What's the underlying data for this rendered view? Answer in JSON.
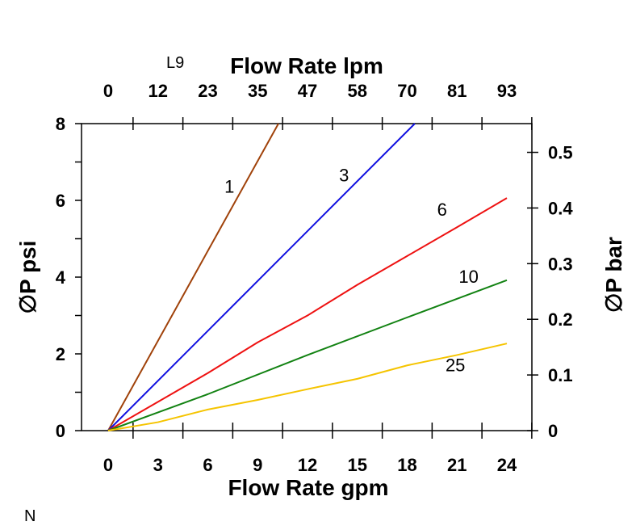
{
  "chart_data": {
    "type": "line",
    "title": "",
    "xlabel": "Flow Rate gpm",
    "x2label": "Flow Rate lpm",
    "ylabel": "∅P psi",
    "y2label": "∅P bar",
    "xlim": [
      -1.6,
      25.5
    ],
    "ylim": [
      0,
      8
    ],
    "y2lim": [
      0,
      0.5516
    ],
    "grid": false,
    "legend": "none",
    "x_ticks": [
      "0",
      "3",
      "6",
      "9",
      "12",
      "15",
      "18",
      "21",
      "24"
    ],
    "x_tick_values": [
      0,
      3,
      6,
      9,
      12,
      15,
      18,
      21,
      24
    ],
    "x2_ticks": [
      "0",
      "12",
      "23",
      "35",
      "47",
      "58",
      "70",
      "81",
      "93"
    ],
    "y_ticks": [
      "0",
      "2",
      "4",
      "6",
      "8"
    ],
    "y_tick_values": [
      0,
      2,
      4,
      6,
      8
    ],
    "y2_ticks": [
      "0",
      "0.1",
      "0.2",
      "0.3",
      "0.4",
      "0.5"
    ],
    "y2_tick_values": [
      0,
      0.1,
      0.2,
      0.3,
      0.4,
      0.5
    ],
    "series": [
      {
        "name": "1",
        "color": "#a0420a",
        "x": [
          0,
          10.25
        ],
        "y": [
          0,
          8
        ]
      },
      {
        "name": "3",
        "color": "#1010e0",
        "x": [
          0,
          18.46
        ],
        "y": [
          0,
          8
        ]
      },
      {
        "name": "6",
        "color": "#ee1111",
        "x": [
          0,
          3,
          6,
          9,
          12,
          15,
          18,
          21,
          24
        ],
        "y": [
          0,
          0.75,
          1.5,
          2.3,
          3.0,
          3.8,
          4.55,
          5.3,
          6.06
        ]
      },
      {
        "name": "10",
        "color": "#128212",
        "x": [
          0,
          6,
          12,
          18,
          24
        ],
        "y": [
          0,
          0.95,
          1.97,
          2.95,
          3.92
        ]
      },
      {
        "name": "25",
        "color": "#f5c400",
        "x": [
          0,
          3,
          6,
          9,
          12,
          15,
          18,
          21,
          24
        ],
        "y": [
          0,
          0.22,
          0.55,
          0.8,
          1.08,
          1.35,
          1.7,
          1.97,
          2.27
        ]
      }
    ]
  },
  "labels": {
    "corner_top": "L9",
    "corner_bottom": "N"
  }
}
